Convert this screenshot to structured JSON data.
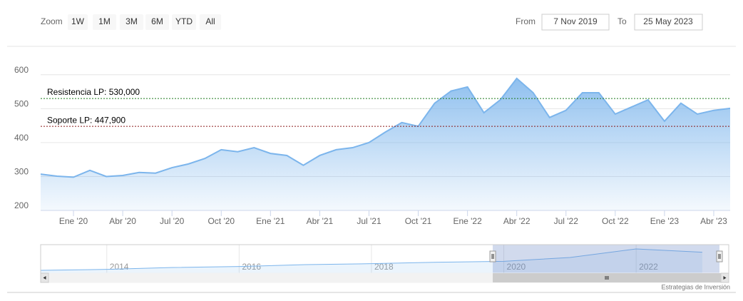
{
  "range_selector": {
    "zoom_label": "Zoom",
    "buttons": [
      "1W",
      "1M",
      "3M",
      "6M",
      "YTD",
      "All"
    ],
    "from_label": "From",
    "from": "7 Nov 2019",
    "to_label": "To",
    "to": "25 May 2023"
  },
  "chart_data": [
    {
      "type": "area",
      "x": [
        "2019-11",
        "2019-12",
        "2020-01",
        "2020-02",
        "2020-03",
        "2020-04",
        "2020-05",
        "2020-06",
        "2020-07",
        "2020-08",
        "2020-09",
        "2020-10",
        "2020-11",
        "2020-12",
        "2021-01",
        "2021-02",
        "2021-03",
        "2021-04",
        "2021-05",
        "2021-06",
        "2021-07",
        "2021-08",
        "2021-09",
        "2021-10",
        "2021-11",
        "2021-12",
        "2022-01",
        "2022-02",
        "2022-03",
        "2022-04",
        "2022-05",
        "2022-06",
        "2022-07",
        "2022-08",
        "2022-09",
        "2022-10",
        "2022-11",
        "2022-12",
        "2023-01",
        "2023-02",
        "2023-03",
        "2023-04",
        "2023-05"
      ],
      "values": [
        307,
        301,
        298,
        318,
        300,
        303,
        312,
        310,
        326,
        337,
        353,
        379,
        373,
        385,
        368,
        362,
        333,
        362,
        379,
        385,
        400,
        431,
        459,
        448,
        516,
        552,
        564,
        488,
        526,
        589,
        547,
        474,
        495,
        547,
        547,
        484,
        505,
        526,
        463,
        516,
        484,
        495,
        501
      ],
      "color": "#7cb5ec",
      "xlim": [
        "2019-11",
        "2023-05"
      ],
      "xticks": [
        {
          "value": "2020-01",
          "label": "Ene '20"
        },
        {
          "value": "2020-04",
          "label": "Abr '20"
        },
        {
          "value": "2020-07",
          "label": "Jul '20"
        },
        {
          "value": "2020-10",
          "label": "Oct '20"
        },
        {
          "value": "2021-01",
          "label": "Ene '21"
        },
        {
          "value": "2021-04",
          "label": "Abr '21"
        },
        {
          "value": "2021-07",
          "label": "Jul '21"
        },
        {
          "value": "2021-10",
          "label": "Oct '21"
        },
        {
          "value": "2022-01",
          "label": "Ene '22"
        },
        {
          "value": "2022-04",
          "label": "Abr '22"
        },
        {
          "value": "2022-07",
          "label": "Jul '22"
        },
        {
          "value": "2022-10",
          "label": "Oct '22"
        },
        {
          "value": "2023-01",
          "label": "Ene '23"
        },
        {
          "value": "2023-04",
          "label": "Abr '23"
        }
      ],
      "ylim": [
        200,
        650
      ],
      "yticks": [
        200,
        300,
        400,
        500,
        600
      ],
      "grid": true,
      "plot_lines": [
        {
          "label": "Resistencia LP: 530,000",
          "value": 530,
          "color": "#1f7a1f"
        },
        {
          "label": "Soporte LP: 447,900",
          "value": 447.9,
          "color": "#8b1a1a"
        }
      ]
    },
    {
      "type": "area",
      "x": [
        2013,
        2014,
        2015,
        2016,
        2017,
        2018,
        2019,
        2020,
        2021,
        2022,
        2023
      ],
      "values": [
        110,
        130,
        170,
        190,
        230,
        250,
        280,
        300,
        380,
        560,
        490
      ],
      "color": "#7cb5ec",
      "xlim": [
        2013,
        2023.4
      ],
      "xticks": [
        2014,
        2016,
        2018,
        2020,
        2022
      ]
    }
  ],
  "credits": "Estrategias de Inversión"
}
